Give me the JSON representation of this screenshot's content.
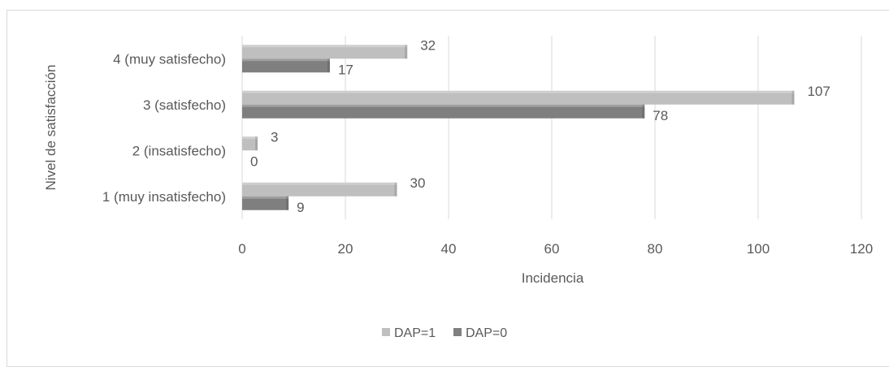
{
  "chart_data": {
    "type": "bar",
    "orientation": "horizontal",
    "categories": [
      "1 (muy insatisfecho)",
      "2 (insatisfecho)",
      "3 (satisfecho)",
      "4 (muy satisfecho)"
    ],
    "series": [
      {
        "name": "DAP=1",
        "values": [
          30,
          3,
          107,
          32
        ],
        "color": "#bfbfbf"
      },
      {
        "name": "DAP=0",
        "values": [
          9,
          0,
          78,
          17
        ],
        "color": "#7f7f7f"
      }
    ],
    "title": "",
    "xlabel": "Incidencia",
    "ylabel": "Nivel de satisfacción",
    "xlim": [
      0,
      120
    ],
    "x_ticks": [
      0,
      20,
      40,
      60,
      80,
      100,
      120
    ],
    "grid": true,
    "legend_position": "bottom",
    "data_labels": true
  }
}
